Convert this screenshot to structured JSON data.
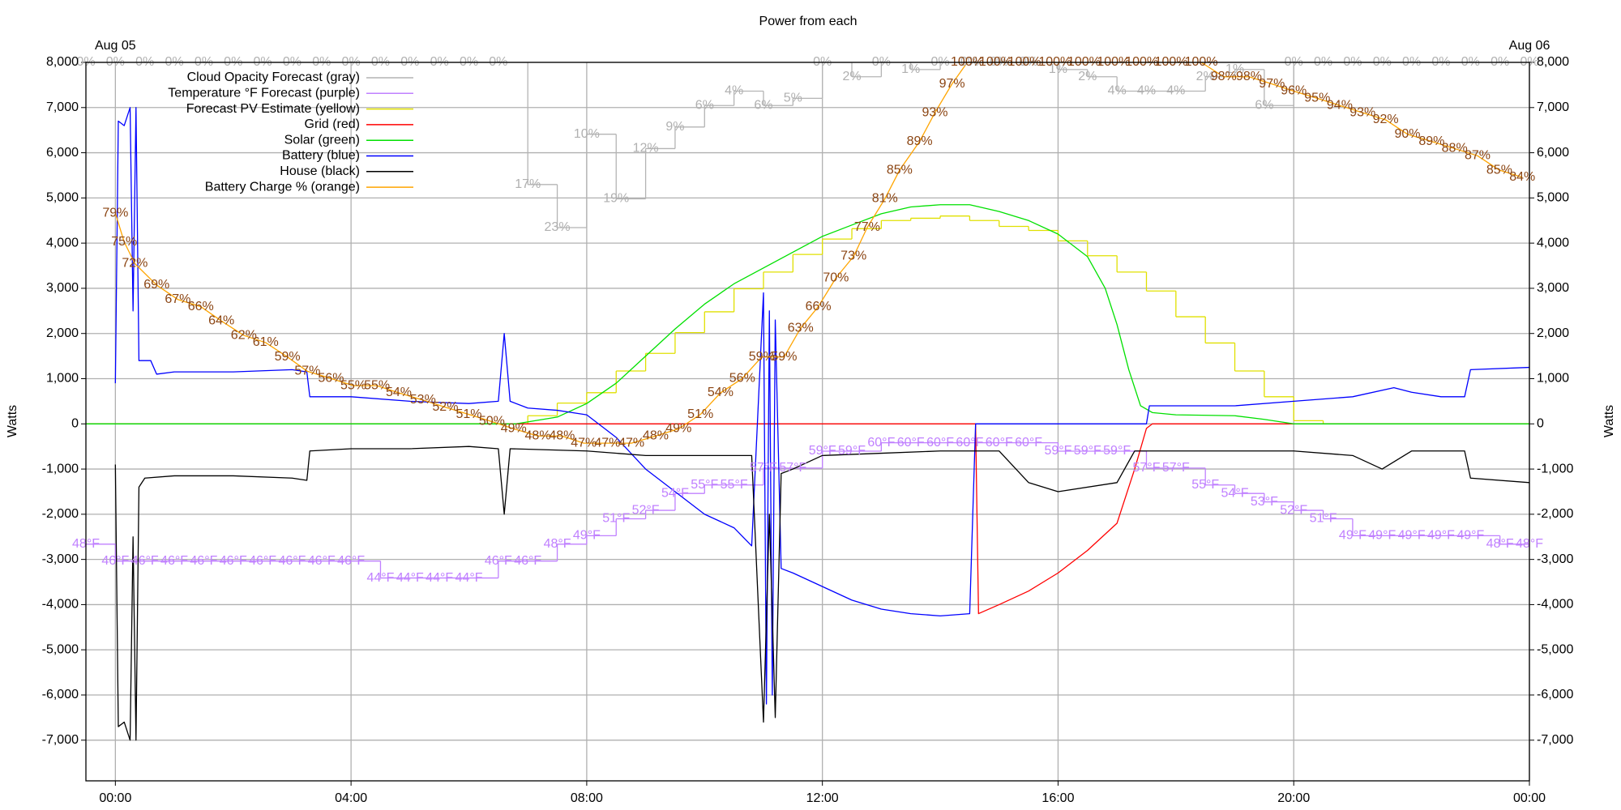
{
  "chart_data": {
    "type": "line",
    "title": "Power from each",
    "y_label": "Watts",
    "xlim": [
      -0.5,
      24
    ],
    "xticks": [
      {
        "value": 0,
        "label": "00:00"
      },
      {
        "value": 4,
        "label": "04:00"
      },
      {
        "value": 8,
        "label": "08:00"
      },
      {
        "value": 12,
        "label": "12:00"
      },
      {
        "value": 16,
        "label": "16:00"
      },
      {
        "value": 20,
        "label": "20:00"
      },
      {
        "value": 24,
        "label": "00:00"
      }
    ],
    "date_labels": [
      {
        "x": 0,
        "label": "Aug 05"
      },
      {
        "x": 24,
        "label": "Aug 06"
      }
    ],
    "ylim": [
      -7900,
      8000
    ],
    "yticks": [
      {
        "value": -7000,
        "label": "-7,000"
      },
      {
        "value": -6000,
        "label": "-6,000"
      },
      {
        "value": -5000,
        "label": "-5,000"
      },
      {
        "value": -4000,
        "label": "-4,000"
      },
      {
        "value": -3000,
        "label": "-3,000"
      },
      {
        "value": -2000,
        "label": "-2,000"
      },
      {
        "value": -1000,
        "label": "-1,000"
      },
      0,
      {
        "value": 1000,
        "label": "1,000"
      },
      {
        "value": 2000,
        "label": "2,000"
      },
      {
        "value": 3000,
        "label": "3,000"
      },
      {
        "value": 4000,
        "label": "4,000"
      },
      {
        "value": 5000,
        "label": "5,000"
      },
      {
        "value": 6000,
        "label": "6,000"
      },
      {
        "value": 7000,
        "label": "7,000"
      },
      {
        "value": 8000,
        "label": "8,000"
      }
    ],
    "y2lim": [
      0,
      100
    ],
    "y3lim": [
      20,
      105
    ],
    "y4lim": [
      100,
      0
    ],
    "grid": true,
    "legend": "top-left",
    "series": [
      {
        "name": "Cloud Opacity Forecast (gray)",
        "color": "#b4b4b4",
        "label_color": "#b0b0b0",
        "axis": "y4",
        "step": true,
        "x": [
          -0.5,
          0,
          0.5,
          1,
          1.5,
          2,
          2.5,
          3,
          3.5,
          4,
          4.5,
          5,
          5.5,
          6,
          6.5,
          7,
          7.5,
          8,
          8.5,
          9,
          9.5,
          10,
          10.5,
          11,
          11.5,
          12,
          12.5,
          13,
          13.5,
          14,
          14.5,
          15,
          15.5,
          16,
          16.5,
          17,
          17.5,
          18,
          18.5,
          19,
          19.5,
          20,
          20.5,
          21,
          21.5,
          22,
          22.5,
          23,
          23.5,
          24
        ],
        "values": [
          0,
          0,
          0,
          0,
          0,
          0,
          0,
          0,
          0,
          0,
          0,
          0,
          0,
          0,
          0,
          17,
          23,
          10,
          19,
          12,
          9,
          6,
          4,
          6,
          5,
          0,
          2,
          0,
          1,
          0,
          0,
          0,
          0,
          1,
          2,
          4,
          4,
          4,
          2,
          1,
          6,
          0,
          0,
          0,
          0,
          0,
          0,
          0,
          0,
          0
        ],
        "value_labels": [
          "0%",
          "0%",
          "0%",
          "0%",
          "0%",
          "0%",
          "0%",
          "0%",
          "0%",
          "0%",
          "0%",
          "0%",
          "0%",
          "0%",
          "0%",
          "17%",
          "23%",
          "10%",
          "19%",
          "12%",
          "9%",
          "6%",
          "4%",
          "6%",
          "5%",
          "0%",
          "2%",
          "0%",
          "1%",
          "0%",
          "0%",
          "0%",
          "0%",
          "1%",
          "2%",
          "4%",
          "4%",
          "4%",
          "2%",
          "1%",
          "6%",
          "0%",
          "0%",
          "0%",
          "0%",
          "0%",
          "0%",
          "0%",
          "0%",
          "0%"
        ]
      },
      {
        "name": "Temperature °F Forecast (purple)",
        "color": "#c080ff",
        "label_color": "#c080ff",
        "axis": "y3",
        "step": true,
        "x": [
          -0.5,
          0,
          0.5,
          1,
          1.5,
          2,
          2.5,
          3,
          3.5,
          4,
          4.5,
          5,
          5.5,
          6,
          6.5,
          7,
          7.5,
          8,
          8.5,
          9,
          9.5,
          10,
          10.5,
          11,
          11.5,
          12,
          12.5,
          13,
          13.5,
          14,
          14.5,
          15,
          15.5,
          16,
          16.5,
          17,
          17.5,
          18,
          18.5,
          19,
          19.5,
          20,
          20.5,
          21,
          21.5,
          22,
          22.5,
          23,
          23.5,
          24
        ],
        "values": [
          48,
          46,
          46,
          46,
          46,
          46,
          46,
          46,
          46,
          46,
          44,
          44,
          44,
          44,
          46,
          46,
          48,
          49,
          51,
          52,
          54,
          55,
          55,
          57,
          57,
          59,
          59,
          60,
          60,
          60,
          60,
          60,
          60,
          59,
          59,
          59,
          57,
          57,
          55,
          54,
          53,
          52,
          51,
          49,
          49,
          49,
          49,
          49,
          48,
          48
        ],
        "value_labels": [
          "48°F",
          "46°F",
          "46°F",
          "46°F",
          "46°F",
          "46°F",
          "46°F",
          "46°F",
          "46°F",
          "46°F",
          "44°F",
          "44°F",
          "44°F",
          "44°F",
          "46°F",
          "46°F",
          "48°F",
          "49°F",
          "51°F",
          "52°F",
          "54°F",
          "55°F",
          "55°F",
          "57°F",
          "57°F",
          "59°F",
          "59°F",
          "60°F",
          "60°F",
          "60°F",
          "60°F",
          "60°F",
          "60°F",
          "59°F",
          "59°F",
          "59°F",
          "57°F",
          "57°F",
          "55°F",
          "54°F",
          "53°F",
          "52°F",
          "51°F",
          "49°F",
          "49°F",
          "49°F",
          "49°F",
          "49°F",
          "48°F",
          "48°F"
        ]
      },
      {
        "name": "Forecast PV Estimate (yellow)",
        "color": "#e0e000",
        "step": true,
        "x": [
          -0.5,
          7,
          7.5,
          8,
          8.5,
          9,
          9.5,
          10,
          10.5,
          11,
          11.5,
          12,
          12.5,
          13,
          13.5,
          14,
          14.5,
          15,
          15.5,
          16,
          16.5,
          17,
          17.5,
          18,
          18.5,
          19,
          19.5,
          20,
          20.5,
          24
        ],
        "values": [
          0,
          180,
          460,
          690,
          1170,
          1560,
          2020,
          2480,
          2990,
          3360,
          3750,
          4090,
          4320,
          4500,
          4550,
          4600,
          4500,
          4370,
          4280,
          4050,
          3720,
          3360,
          2940,
          2370,
          1790,
          1170,
          600,
          70,
          0,
          0
        ]
      },
      {
        "name": "Grid (red)",
        "color": "#ff0000",
        "x": [
          -0.5,
          14.6,
          14.65,
          15,
          15.5,
          16,
          16.5,
          17,
          17.3,
          17.5,
          17.6,
          24
        ],
        "values": [
          0,
          0,
          -4200,
          -4000,
          -3700,
          -3300,
          -2800,
          -2200,
          -1000,
          -100,
          0,
          0
        ]
      },
      {
        "name": "Solar (green)",
        "color": "#00e000",
        "x": [
          -0.5,
          6.8,
          7.5,
          8,
          8.5,
          9,
          9.5,
          10,
          10.5,
          11,
          11.5,
          12,
          12.5,
          13,
          13.5,
          14,
          14.5,
          15,
          15.5,
          16,
          16.5,
          16.8,
          17,
          17.2,
          17.4,
          17.6,
          18,
          19,
          19.5,
          20,
          24
        ],
        "values": [
          0,
          0,
          150,
          450,
          900,
          1500,
          2100,
          2650,
          3100,
          3450,
          3800,
          4150,
          4400,
          4650,
          4800,
          4850,
          4850,
          4700,
          4500,
          4200,
          3700,
          3000,
          2200,
          1200,
          400,
          250,
          200,
          180,
          100,
          0,
          0
        ]
      },
      {
        "name": "Battery (blue)",
        "color": "#0000ff",
        "x": [
          0,
          0.05,
          0.15,
          0.25,
          0.3,
          0.35,
          0.4,
          0.6,
          0.7,
          1,
          2,
          3,
          3.25,
          3.3,
          4,
          5,
          6,
          6.5,
          6.6,
          6.7,
          7,
          7.5,
          8,
          8.5,
          9,
          9.5,
          10,
          10.5,
          10.8,
          11,
          11.05,
          11.1,
          11.15,
          11.2,
          11.3,
          11.5,
          12,
          12.5,
          13,
          13.5,
          14,
          14.5,
          14.6,
          17.5,
          17.55,
          18,
          19,
          20,
          21,
          21.7,
          22,
          22.5,
          22.9,
          23,
          24
        ],
        "values": [
          900,
          6700,
          6600,
          7000,
          2500,
          7000,
          1400,
          1400,
          1100,
          1150,
          1150,
          1200,
          1150,
          600,
          600,
          500,
          450,
          500,
          2000,
          500,
          350,
          300,
          200,
          -300,
          -1000,
          -1500,
          -2000,
          -2300,
          -2700,
          2900,
          -6200,
          2500,
          -6000,
          2300,
          -3200,
          -3300,
          -3600,
          -3900,
          -4100,
          -4200,
          -4250,
          -4200,
          0,
          0,
          400,
          400,
          400,
          500,
          600,
          800,
          700,
          600,
          600,
          1200,
          1250
        ]
      },
      {
        "name": "House (black)",
        "color": "#000000",
        "x": [
          0,
          0.05,
          0.15,
          0.25,
          0.3,
          0.35,
          0.4,
          0.5,
          1,
          2,
          3,
          3.25,
          3.3,
          4,
          5,
          6,
          6.5,
          6.6,
          6.7,
          8,
          9,
          10,
          10.8,
          11,
          11.1,
          11.2,
          11.3,
          11.5,
          12,
          13,
          14,
          15,
          15.5,
          16,
          17,
          17.3,
          18,
          19,
          20,
          21,
          21.5,
          22,
          22.9,
          23,
          24
        ],
        "values": [
          -900,
          -6700,
          -6600,
          -7000,
          -2500,
          -7000,
          -1400,
          -1200,
          -1150,
          -1150,
          -1200,
          -1250,
          -600,
          -550,
          -550,
          -500,
          -550,
          -2000,
          -550,
          -600,
          -700,
          -700,
          -700,
          -6600,
          -2000,
          -6500,
          -1100,
          -1000,
          -700,
          -650,
          -600,
          -600,
          -1300,
          -1500,
          -1300,
          -600,
          -600,
          -600,
          -600,
          -700,
          -1000,
          -600,
          -600,
          -1200,
          -1300
        ]
      },
      {
        "name": "Battery Charge % (orange)",
        "color": "#ffa500",
        "label_color": "#8b4513",
        "axis": "y2",
        "x": [
          0,
          0.15,
          0.33,
          0.7,
          1.06,
          1.45,
          1.8,
          2.18,
          2.55,
          2.92,
          3.26,
          3.66,
          4.04,
          4.44,
          4.81,
          5.22,
          5.6,
          6.0,
          6.39,
          6.76,
          7.17,
          7.58,
          7.95,
          8.35,
          8.76,
          9.17,
          9.56,
          9.93,
          10.27,
          10.64,
          10.97,
          11.35,
          11.63,
          11.93,
          12.23,
          12.53,
          12.76,
          13.06,
          13.31,
          13.65,
          13.91,
          14.2,
          14.46,
          14.94,
          15.43,
          15.95,
          16.44,
          16.94,
          17.42,
          17.92,
          18.43,
          18.81,
          19.24,
          19.63,
          20.0,
          20.4,
          20.78,
          21.17,
          21.56,
          21.93,
          22.34,
          22.73,
          23.12,
          23.49,
          23.88
        ],
        "values": [
          79,
          75,
          72,
          69,
          67,
          66,
          64,
          62,
          61,
          59,
          57,
          56,
          55,
          55,
          54,
          53,
          52,
          51,
          50,
          49,
          48,
          48,
          47,
          47,
          47,
          48,
          49,
          51,
          54,
          56,
          59,
          59,
          63,
          66,
          70,
          73,
          77,
          81,
          85,
          89,
          93,
          97,
          100,
          100,
          100,
          100,
          100,
          100,
          100,
          100,
          100,
          98,
          98,
          97,
          96,
          95,
          94,
          93,
          92,
          90,
          89,
          88,
          87,
          85,
          84
        ],
        "value_labels": [
          "79%",
          "75%",
          "72%",
          "69%",
          "67%",
          "66%",
          "64%",
          "62%",
          "61%",
          "59%",
          "57%",
          "56%",
          "55%",
          "55%",
          "54%",
          "53%",
          "52%",
          "51%",
          "50%",
          "49%",
          "48%",
          "48%",
          "47%",
          "47%",
          "47%",
          "48%",
          "49%",
          "51%",
          "54%",
          "56%",
          "59%",
          "59%",
          "63%",
          "66%",
          "70%",
          "73%",
          "77%",
          "81%",
          "85%",
          "89%",
          "93%",
          "97%",
          "100%",
          "100%",
          "100%",
          "100%",
          "100%",
          "100%",
          "100%",
          "100%",
          "100%",
          "98%",
          "98%",
          "97%",
          "96%",
          "95%",
          "94%",
          "93%",
          "92%",
          "90%",
          "89%",
          "88%",
          "87%",
          "85%",
          "84%"
        ]
      }
    ]
  }
}
